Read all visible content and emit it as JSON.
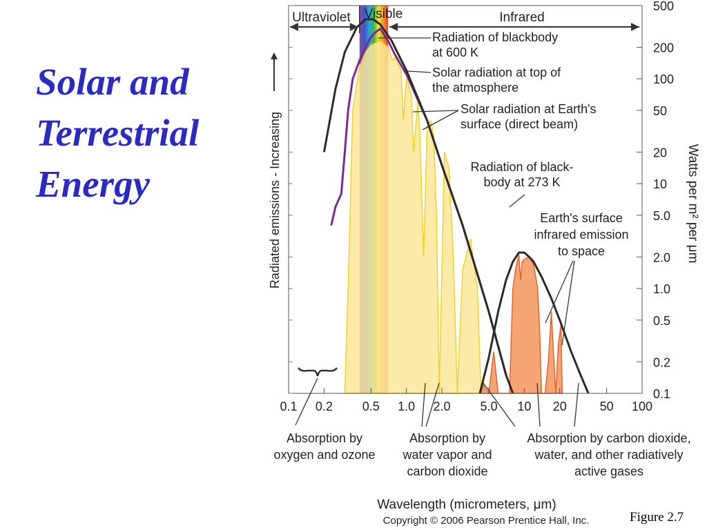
{
  "slide": {
    "title_lines": [
      "Solar and",
      "Terrestrial",
      "Energy"
    ],
    "figure_label": "Figure  2.7"
  },
  "colors": {
    "title": "#2b2bc4",
    "solar_top": "#7a2a8f",
    "surface_fill": "#fbe69a",
    "surface_edge": "#f0d22a",
    "earth_fill": "#f3955a",
    "earth_edge": "#e9642a",
    "blackbody": "#2a2a2a"
  },
  "chart_data": {
    "type": "line",
    "xlabel": "Wavelength (micrometers, μm)",
    "ylabel_left": "Radiated emissions - Increasing",
    "ylabel_right": "Watts per m² per μm",
    "x_scale": "log",
    "y_scale": "log",
    "xlim": [
      0.1,
      100
    ],
    "ylim": [
      0.1,
      500
    ],
    "x_ticks": [
      "0.1",
      "0.2",
      "0.5",
      "1.0",
      "2.0",
      "5.0",
      "10",
      "20",
      "50",
      "100"
    ],
    "x_tick_values": [
      0.1,
      0.2,
      0.5,
      1.0,
      2.0,
      5.0,
      10,
      20,
      50,
      100
    ],
    "y_ticks": [
      "500",
      "200",
      "100",
      "50",
      "20",
      "10",
      "5.0",
      "2.0",
      "1.0",
      "0.5",
      "0.2",
      "0.1"
    ],
    "y_tick_values": [
      500,
      200,
      100,
      50,
      20,
      10,
      5,
      2,
      1,
      0.5,
      0.2,
      0.1
    ],
    "regions": [
      {
        "name": "Ultraviolet",
        "from": 0.1,
        "to": 0.4
      },
      {
        "name": "Visible",
        "from": 0.4,
        "to": 0.7
      },
      {
        "name": "Infrared",
        "from": 0.7,
        "to": 100
      }
    ],
    "series": [
      {
        "key": "blackbody600",
        "name": "Radiation of blackbody at 600 K",
        "x": [
          0.2,
          0.25,
          0.3,
          0.38,
          0.45,
          0.52,
          0.6,
          0.75,
          1.0,
          1.5,
          2.0,
          3.0,
          5.0,
          7.0,
          8.0
        ],
        "y": [
          20,
          80,
          180,
          310,
          370,
          370,
          330,
          230,
          120,
          40,
          15,
          4,
          0.6,
          0.15,
          0.1
        ]
      },
      {
        "key": "solar_top",
        "name": "Solar radiation at top of the atmosphere",
        "x": [
          0.23,
          0.25,
          0.28,
          0.3,
          0.32,
          0.35,
          0.4,
          0.45,
          0.5,
          0.55,
          0.6,
          0.7,
          0.8,
          1.0,
          1.5,
          2.0,
          3.0,
          5.0,
          7.0
        ],
        "y": [
          4,
          6,
          8,
          20,
          50,
          100,
          150,
          200,
          250,
          280,
          300,
          230,
          170,
          110,
          40,
          15,
          4,
          0.6,
          0.15
        ]
      },
      {
        "key": "solar_surface",
        "name": "Solar radiation at Earth's surface (direct beam)",
        "x": [
          0.3,
          0.32,
          0.35,
          0.4,
          0.45,
          0.5,
          0.6,
          0.7,
          0.76,
          0.8,
          0.9,
          0.94,
          1.0,
          1.1,
          1.15,
          1.25,
          1.3,
          1.4,
          1.5,
          1.6,
          1.7,
          1.8,
          1.9,
          2.1,
          2.3,
          2.5,
          2.7,
          3.0,
          3.5,
          4.0,
          4.3
        ],
        "y": [
          0.1,
          1,
          50,
          130,
          180,
          210,
          230,
          200,
          150,
          160,
          120,
          40,
          100,
          70,
          20,
          60,
          30,
          2,
          35,
          40,
          30,
          5,
          0.1,
          20,
          14,
          2,
          0.1,
          1.5,
          3,
          1,
          0.1
        ]
      },
      {
        "key": "blackbody273",
        "name": "Radiation of black-body at 273 K",
        "x": [
          4.2,
          5.0,
          6.0,
          7.0,
          8.0,
          9.0,
          10.0,
          11.0,
          12.0,
          14.0,
          17.0,
          20.0,
          25.0,
          30.0,
          35.0
        ],
        "y": [
          0.1,
          0.22,
          0.6,
          1.2,
          1.8,
          2.2,
          2.2,
          2.0,
          1.8,
          1.3,
          0.8,
          0.5,
          0.25,
          0.15,
          0.1
        ]
      },
      {
        "key": "earth_ir",
        "name": "Earth's surface infrared emission to space",
        "x": [
          4.3,
          4.5,
          5.0,
          5.5,
          6.0,
          7.5,
          8.0,
          8.5,
          9.0,
          9.3,
          9.6,
          10.0,
          11.0,
          12.0,
          13.0,
          13.5,
          14.0,
          15.0,
          16.0,
          17.0,
          17.5,
          18.5,
          19.5,
          20.5,
          21.0
        ],
        "y": [
          0.1,
          0.12,
          0.1,
          0.25,
          0.1,
          0.1,
          1.0,
          1.6,
          2.1,
          1.2,
          1.8,
          1.9,
          2.0,
          1.7,
          1.0,
          0.4,
          0.1,
          0.1,
          0.2,
          0.6,
          0.3,
          0.1,
          0.3,
          0.45,
          0.1
        ]
      }
    ],
    "annotations": [
      {
        "key": "bb600",
        "lines": [
          "Radiation of blackbody",
          "at 600 K"
        ]
      },
      {
        "key": "solar_top",
        "lines": [
          "Solar radiation at top of",
          "the atmosphere"
        ]
      },
      {
        "key": "solar_surface",
        "lines": [
          "Solar radiation at Earth's",
          "surface (direct beam)"
        ]
      },
      {
        "key": "bb273",
        "lines": [
          "Radiation of black-",
          "body at 273 K"
        ]
      },
      {
        "key": "earth_ir",
        "lines": [
          "Earth's surface",
          "infrared emission",
          "to space"
        ]
      },
      {
        "key": "abs_o3",
        "lines": [
          "Absorption by",
          "oxygen and ozone"
        ]
      },
      {
        "key": "abs_h2o",
        "lines": [
          "Absorption by",
          "water vapor and",
          "carbon dioxide"
        ]
      },
      {
        "key": "abs_co2",
        "lines": [
          "Absorption by carbon dioxide,",
          "water, and other radiatively",
          "active gases"
        ]
      }
    ],
    "copyright": "Copyright © 2006 Pearson Prentice Hall, Inc."
  }
}
